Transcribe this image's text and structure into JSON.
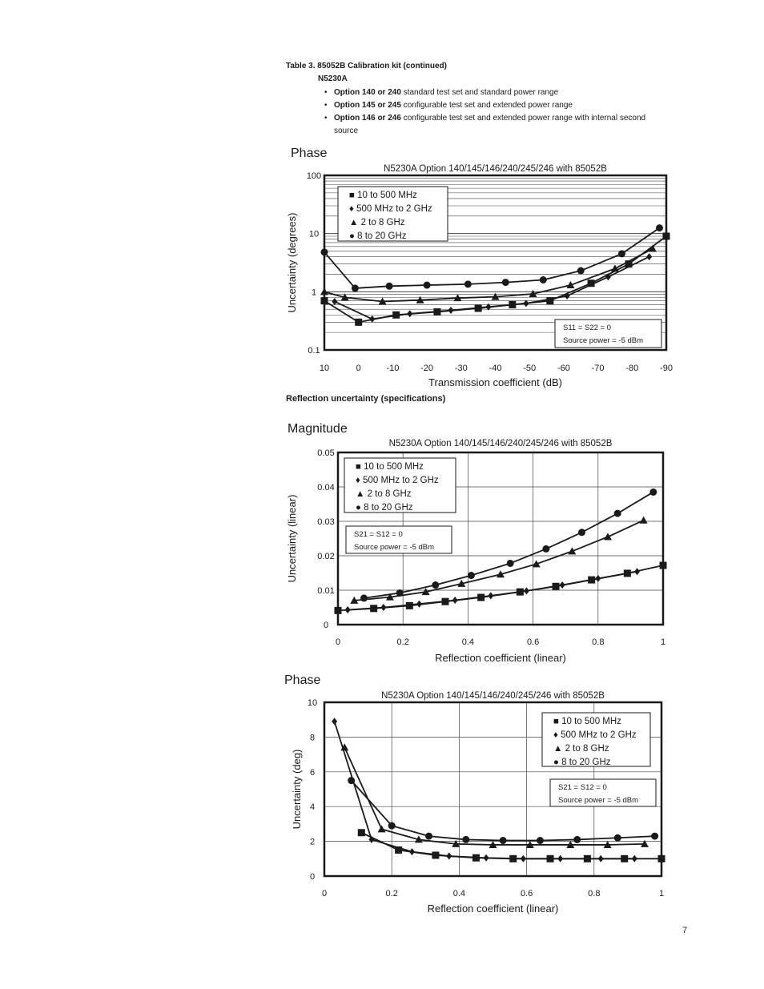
{
  "header": {
    "table_title": "Table 3. 85052B Calibration kit (continued)",
    "model": "N5230A"
  },
  "options": [
    {
      "bold": "Option 140 or 240",
      "text": " standard test set and standard power range"
    },
    {
      "bold": "Option 145 or 245",
      "text": " configurable test set and extended power range"
    },
    {
      "bold": "Option 146 or 246",
      "text": " configurable test set and extended power range with internal second source"
    }
  ],
  "bullet": "•",
  "legend_items": {
    "square": "10 to 500 MHz",
    "diamond": "500 MHz to 2 GHz",
    "triangle": "2 to 8 GHz",
    "circle": "8 to 20 GHz"
  },
  "reflection_caption": "Reflection uncertainty (specifications)",
  "page_number": "7",
  "chart_data": [
    {
      "type": "line",
      "section_label": "Phase",
      "title": "N5230A Option 140/145/146/240/245/246 with 85052B",
      "xlabel": "Transmission coefficient (dB)",
      "ylabel": "Uncertainty (degrees)",
      "yscale": "log",
      "xlim": [
        10,
        -90
      ],
      "ylim": [
        0.1,
        100
      ],
      "x_ticks": [
        "10",
        "0",
        "-10",
        "-20",
        "-30",
        "-40",
        "-50",
        "-60",
        "-70",
        "-80",
        "-90"
      ],
      "y_ticks": [
        "0.1",
        "1",
        "10",
        "100"
      ],
      "note": [
        "S11 = S22 = 0",
        "Source power = -5 dBm"
      ],
      "legend_position": "top-left",
      "series": [
        {
          "name": "10 to 500 MHz",
          "marker": "square",
          "points": [
            [
              10,
              0.7
            ],
            [
              0,
              0.3
            ],
            [
              -11,
              0.4
            ],
            [
              -23,
              0.45
            ],
            [
              -35,
              0.52
            ],
            [
              -45,
              0.6
            ],
            [
              -56,
              0.7
            ],
            [
              -68,
              1.4
            ],
            [
              -79,
              3.0
            ],
            [
              -90,
              9.0
            ]
          ]
        },
        {
          "name": "500 MHz to 2 GHz",
          "marker": "diamond",
          "points": [
            [
              7,
              0.68
            ],
            [
              -4,
              0.34
            ],
            [
              -15,
              0.42
            ],
            [
              -27,
              0.48
            ],
            [
              -38,
              0.55
            ],
            [
              -49,
              0.63
            ],
            [
              -61,
              0.85
            ],
            [
              -73,
              1.8
            ],
            [
              -85,
              4.0
            ]
          ]
        },
        {
          "name": "2 to 8 GHz",
          "marker": "triangle",
          "points": [
            [
              10,
              1.0
            ],
            [
              4,
              0.8
            ],
            [
              -7,
              0.68
            ],
            [
              -18,
              0.72
            ],
            [
              -29,
              0.78
            ],
            [
              -40,
              0.82
            ],
            [
              -51,
              0.92
            ],
            [
              -62,
              1.3
            ],
            [
              -75,
              2.5
            ],
            [
              -86,
              5.5
            ]
          ]
        },
        {
          "name": "8 to 20 GHz",
          "marker": "circle",
          "points": [
            [
              10,
              4.8
            ],
            [
              1,
              1.15
            ],
            [
              -9,
              1.25
            ],
            [
              -20,
              1.3
            ],
            [
              -32,
              1.35
            ],
            [
              -43,
              1.45
            ],
            [
              -54,
              1.6
            ],
            [
              -65,
              2.3
            ],
            [
              -77,
              4.5
            ],
            [
              -88,
              12.5
            ]
          ]
        }
      ]
    },
    {
      "type": "line",
      "section_label": "Magnitude",
      "title": "N5230A Option 140/145/146/240/245/246 with 85052B",
      "xlabel": "Reflection coefficient (linear)",
      "ylabel": "Uncertainty (linear)",
      "xlim": [
        0,
        1
      ],
      "ylim": [
        0,
        0.05
      ],
      "x_ticks": [
        "0",
        "0.2",
        "0.4",
        "0.6",
        "0.8",
        "1"
      ],
      "y_ticks": [
        "0",
        "0.01",
        "0.02",
        "0.03",
        "0.04",
        "0.05"
      ],
      "note": [
        "S21 = S12 = 0",
        "Source power = -5 dBm"
      ],
      "legend_position": "top-left",
      "series": [
        {
          "name": "10 to 500 MHz",
          "marker": "square",
          "points": [
            [
              0,
              0.0041
            ],
            [
              0.11,
              0.0047
            ],
            [
              0.22,
              0.0055
            ],
            [
              0.33,
              0.0067
            ],
            [
              0.44,
              0.0079
            ],
            [
              0.56,
              0.0095
            ],
            [
              0.67,
              0.0111
            ],
            [
              0.78,
              0.013
            ],
            [
              0.89,
              0.0149
            ],
            [
              1.0,
              0.0172
            ]
          ]
        },
        {
          "name": "500 MHz to 2 GHz",
          "marker": "diamond",
          "points": [
            [
              0.03,
              0.0043
            ],
            [
              0.14,
              0.005
            ],
            [
              0.25,
              0.006
            ],
            [
              0.36,
              0.0071
            ],
            [
              0.47,
              0.0084
            ],
            [
              0.58,
              0.0098
            ],
            [
              0.69,
              0.0115
            ],
            [
              0.8,
              0.0134
            ],
            [
              0.92,
              0.0154
            ]
          ]
        },
        {
          "name": "2 to 8 GHz",
          "marker": "triangle",
          "points": [
            [
              0.05,
              0.007
            ],
            [
              0.16,
              0.008
            ],
            [
              0.27,
              0.0095
            ],
            [
              0.38,
              0.0119
            ],
            [
              0.5,
              0.0146
            ],
            [
              0.61,
              0.0176
            ],
            [
              0.72,
              0.0213
            ],
            [
              0.83,
              0.0255
            ],
            [
              0.94,
              0.0303
            ]
          ]
        },
        {
          "name": "8 to 20 GHz",
          "marker": "circle",
          "points": [
            [
              0.08,
              0.0077
            ],
            [
              0.19,
              0.0092
            ],
            [
              0.3,
              0.0115
            ],
            [
              0.41,
              0.0143
            ],
            [
              0.53,
              0.0178
            ],
            [
              0.64,
              0.022
            ],
            [
              0.75,
              0.0268
            ],
            [
              0.86,
              0.0323
            ],
            [
              0.97,
              0.0385
            ]
          ]
        }
      ]
    },
    {
      "type": "line",
      "section_label": "Phase",
      "title": "N5230A Option 140/145/146/240/245/246 with 85052B",
      "xlabel": "Reflection coefficient (linear)",
      "ylabel": "Uncertainty (deg)",
      "xlim": [
        0,
        1
      ],
      "ylim": [
        0,
        10
      ],
      "x_ticks": [
        "0",
        "0.2",
        "0.4",
        "0.6",
        "0.8",
        "1"
      ],
      "y_ticks": [
        "0",
        "2",
        "4",
        "6",
        "8",
        "10"
      ],
      "note": [
        "S21 = S12 = 0",
        "Source power = -5 dBm"
      ],
      "legend_position": "top-right",
      "series": [
        {
          "name": "10 to 500 MHz",
          "marker": "square",
          "points": [
            [
              0.11,
              2.5
            ],
            [
              0.22,
              1.5
            ],
            [
              0.33,
              1.2
            ],
            [
              0.45,
              1.05
            ],
            [
              0.56,
              1.0
            ],
            [
              0.67,
              1.0
            ],
            [
              0.78,
              1.0
            ],
            [
              0.89,
              1.0
            ],
            [
              1.0,
              1.0
            ]
          ]
        },
        {
          "name": "500 MHz to 2 GHz",
          "marker": "diamond",
          "points": [
            [
              0.03,
              8.9
            ],
            [
              0.14,
              2.1
            ],
            [
              0.26,
              1.4
            ],
            [
              0.37,
              1.15
            ],
            [
              0.48,
              1.05
            ],
            [
              0.59,
              1.0
            ],
            [
              0.7,
              1.0
            ],
            [
              0.82,
              1.0
            ],
            [
              0.92,
              1.0
            ]
          ]
        },
        {
          "name": "2 to 8 GHz",
          "marker": "triangle",
          "points": [
            [
              0.06,
              7.4
            ],
            [
              0.17,
              2.7
            ],
            [
              0.28,
              2.1
            ],
            [
              0.39,
              1.85
            ],
            [
              0.5,
              1.8
            ],
            [
              0.61,
              1.8
            ],
            [
              0.73,
              1.8
            ],
            [
              0.84,
              1.8
            ],
            [
              0.95,
              1.85
            ]
          ]
        },
        {
          "name": "8 to 20 GHz",
          "marker": "circle",
          "points": [
            [
              0.08,
              5.5
            ],
            [
              0.2,
              2.9
            ],
            [
              0.31,
              2.3
            ],
            [
              0.42,
              2.1
            ],
            [
              0.53,
              2.05
            ],
            [
              0.64,
              2.05
            ],
            [
              0.75,
              2.1
            ],
            [
              0.87,
              2.2
            ],
            [
              0.98,
              2.3
            ]
          ]
        }
      ]
    }
  ]
}
